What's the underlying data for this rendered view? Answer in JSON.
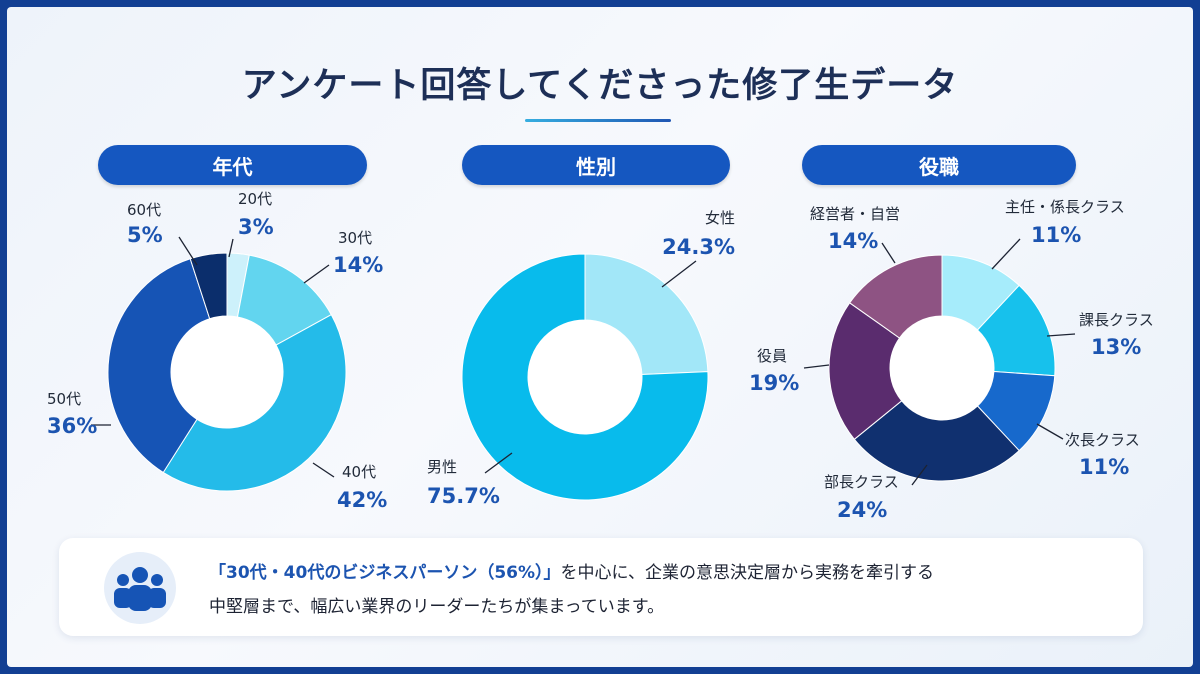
{
  "title": "アンケート回答してくださった修了生データ",
  "panels": [
    {
      "heading": "年代",
      "chart_data": {
        "type": "pie",
        "labels": [
          "20代",
          "30代",
          "40代",
          "50代",
          "60代"
        ],
        "percent_labels": [
          "3%",
          "14%",
          "42%",
          "36%",
          "5%"
        ],
        "values": [
          3,
          14,
          42,
          36,
          5
        ],
        "colors": [
          "#cdf1fb",
          "#62d5ef",
          "#24bbe9",
          "#1654b5",
          "#0b2e6c"
        ]
      }
    },
    {
      "heading": "性別",
      "chart_data": {
        "type": "pie",
        "labels": [
          "女性",
          "男性"
        ],
        "percent_labels": [
          "24.3%",
          "75.7%"
        ],
        "values": [
          24.3,
          75.7
        ],
        "colors": [
          "#a2e7f8",
          "#08bbec"
        ]
      }
    },
    {
      "heading": "役職",
      "chart_data": {
        "type": "pie",
        "labels": [
          "主任・係長クラス",
          "課長クラス",
          "次長クラス",
          "部長クラス",
          "役員",
          "経営者・自営"
        ],
        "percent_labels": [
          "11%",
          "13%",
          "11%",
          "24%",
          "19%",
          "14%"
        ],
        "values": [
          11,
          13,
          11,
          24,
          19,
          14
        ],
        "colors": [
          "#a6ecfb",
          "#17c1ec",
          "#1769cc",
          "#10306f",
          "#5a2c6e",
          "#8e5383"
        ]
      }
    }
  ],
  "summary": {
    "highlight": "「30代・40代のビジネスパーソン（56%）」",
    "text1": "を中心に、企業の意思決定層から実務を牽引する",
    "text2": "中堅層まで、幅広い業界のリーダーたちが集まっています。"
  }
}
